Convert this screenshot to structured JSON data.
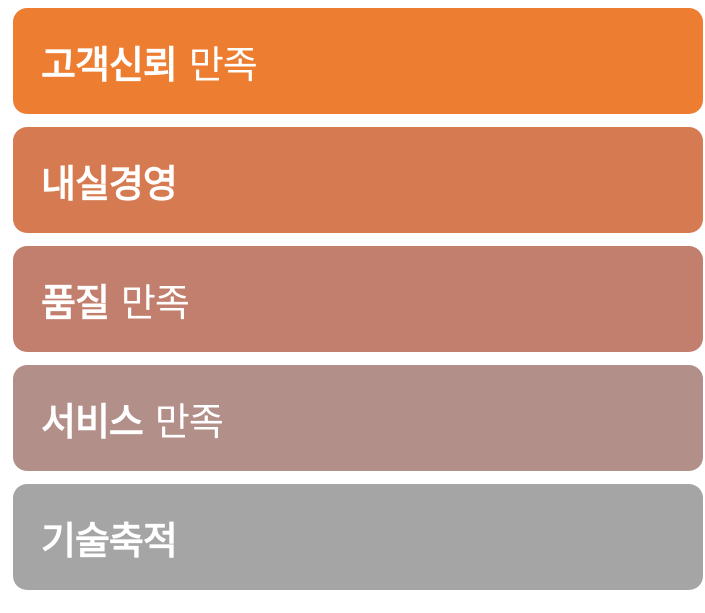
{
  "bars": [
    {
      "bold": "고객신뢰",
      "normal": "만족",
      "color": "#ED7D31"
    },
    {
      "bold": "내실경영",
      "normal": "",
      "color": "#D67B51"
    },
    {
      "bold": "품질",
      "normal": "만족",
      "color": "#C37F6D"
    },
    {
      "bold": "서비스",
      "normal": "만족",
      "color": "#B28F88"
    },
    {
      "bold": "기술축적",
      "normal": "",
      "color": "#A5A5A5"
    }
  ]
}
